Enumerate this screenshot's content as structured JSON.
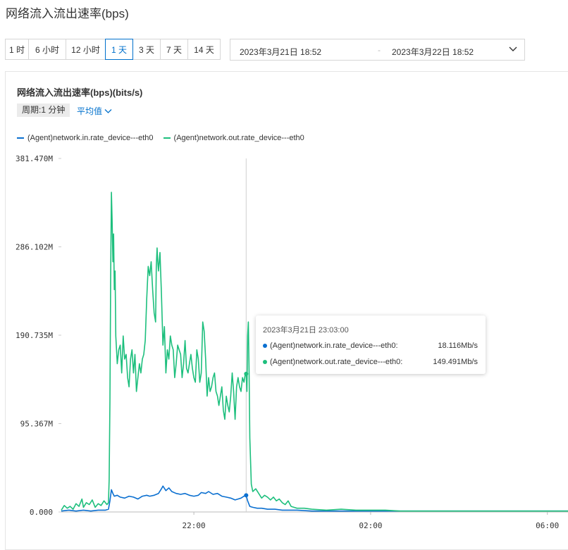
{
  "page": {
    "title": "网络流入流出速率(bps)"
  },
  "range_tabs": [
    {
      "label": "1 时",
      "active": false
    },
    {
      "label": "6 小时",
      "active": false
    },
    {
      "label": "12 小时",
      "active": false
    },
    {
      "label": "1 天",
      "active": true
    },
    {
      "label": "3 天",
      "active": false
    },
    {
      "label": "7 天",
      "active": false
    },
    {
      "label": "14 天",
      "active": false
    }
  ],
  "date_range": {
    "start": "2023年3月21日 18:52",
    "separator": "-",
    "end": "2023年3月22日 18:52"
  },
  "chart_header": {
    "title": "网络流入流出速率(bps)(bits/s)",
    "period": "周期:1 分钟",
    "aggregation": "平均值"
  },
  "colors": {
    "accent": "#0070cc",
    "in_series": "#0a6fd0",
    "out_series": "#1dbf7d"
  },
  "icons": {
    "date_dropdown": "chevron-down-icon",
    "agg_dropdown": "chevron-down-icon"
  },
  "tooltip": {
    "time": "2023年3月21日 23:03:00",
    "rows": [
      {
        "name": "(Agent)network.in.rate_device---eth0:",
        "value": "18.116Mb/s"
      },
      {
        "name": "(Agent)network.out.rate_device---eth0:",
        "value": "149.491Mb/s"
      }
    ]
  },
  "chart_data": {
    "type": "line",
    "title": "网络流入流出速率(bps)(bits/s)",
    "y_tick_labels": [
      "0.000",
      "95.367M",
      "190.735M",
      "286.102M",
      "381.470M"
    ],
    "y_unit": "Mbit/s",
    "ylim": [
      0,
      381.47
    ],
    "x_tick_labels": [
      "22:00",
      "02:00",
      "06:00"
    ],
    "x_tick_minutes": [
      180,
      420,
      660
    ],
    "x_range_minutes": [
      0,
      688
    ],
    "hover_minute": 251,
    "grid": false,
    "legend_position": "top-left",
    "series": [
      {
        "name": "(Agent)network.in.rate_device---eth0",
        "color": "#0a6fd0",
        "points": [
          [
            0,
            1
          ],
          [
            10,
            2
          ],
          [
            20,
            1
          ],
          [
            30,
            2
          ],
          [
            40,
            1
          ],
          [
            50,
            2
          ],
          [
            60,
            2
          ],
          [
            64,
            3
          ],
          [
            66,
            12
          ],
          [
            68,
            24
          ],
          [
            70,
            20
          ],
          [
            72,
            17
          ],
          [
            76,
            18
          ],
          [
            80,
            16
          ],
          [
            86,
            15
          ],
          [
            92,
            17
          ],
          [
            98,
            16
          ],
          [
            104,
            14
          ],
          [
            110,
            17
          ],
          [
            116,
            18
          ],
          [
            120,
            17
          ],
          [
            126,
            18
          ],
          [
            132,
            20
          ],
          [
            136,
            25
          ],
          [
            138,
            28
          ],
          [
            142,
            23
          ],
          [
            146,
            26
          ],
          [
            150,
            22
          ],
          [
            156,
            20
          ],
          [
            162,
            19
          ],
          [
            168,
            20
          ],
          [
            174,
            18
          ],
          [
            180,
            17
          ],
          [
            186,
            18
          ],
          [
            190,
            21
          ],
          [
            196,
            20
          ],
          [
            200,
            22
          ],
          [
            206,
            19
          ],
          [
            212,
            20
          ],
          [
            218,
            17
          ],
          [
            224,
            16
          ],
          [
            230,
            15
          ],
          [
            236,
            13
          ],
          [
            240,
            14
          ],
          [
            244,
            15
          ],
          [
            248,
            17
          ],
          [
            251,
            18
          ],
          [
            253,
            12
          ],
          [
            256,
            6
          ],
          [
            260,
            5
          ],
          [
            266,
            4
          ],
          [
            272,
            4
          ],
          [
            280,
            3
          ],
          [
            290,
            3
          ],
          [
            300,
            2
          ],
          [
            310,
            2
          ],
          [
            320,
            2
          ],
          [
            340,
            1
          ],
          [
            360,
            1
          ],
          [
            380,
            1
          ],
          [
            420,
            1
          ],
          [
            460,
            1
          ],
          [
            500,
            1
          ],
          [
            560,
            1
          ],
          [
            620,
            1
          ],
          [
            688,
            1
          ]
        ]
      },
      {
        "name": "(Agent)network.out.rate_device---eth0",
        "color": "#1dbf7d",
        "points": [
          [
            0,
            2
          ],
          [
            4,
            7
          ],
          [
            8,
            4
          ],
          [
            12,
            6
          ],
          [
            16,
            3
          ],
          [
            20,
            9
          ],
          [
            24,
            6
          ],
          [
            28,
            14
          ],
          [
            30,
            5
          ],
          [
            34,
            10
          ],
          [
            38,
            8
          ],
          [
            42,
            13
          ],
          [
            46,
            5
          ],
          [
            50,
            9
          ],
          [
            54,
            7
          ],
          [
            58,
            12
          ],
          [
            62,
            8
          ],
          [
            64,
            10
          ],
          [
            65,
            35
          ],
          [
            66,
            120
          ],
          [
            67,
            250
          ],
          [
            68,
            345
          ],
          [
            69,
            315
          ],
          [
            70,
            270
          ],
          [
            71,
            300
          ],
          [
            72,
            240
          ],
          [
            73,
            260
          ],
          [
            74,
            190
          ],
          [
            76,
            160
          ],
          [
            78,
            175
          ],
          [
            80,
            180
          ],
          [
            82,
            150
          ],
          [
            84,
            190
          ],
          [
            86,
            165
          ],
          [
            88,
            170
          ],
          [
            90,
            145
          ],
          [
            92,
            135
          ],
          [
            94,
            165
          ],
          [
            96,
            175
          ],
          [
            98,
            150
          ],
          [
            100,
            170
          ],
          [
            102,
            130
          ],
          [
            104,
            145
          ],
          [
            106,
            160
          ],
          [
            108,
            150
          ],
          [
            110,
            165
          ],
          [
            112,
            170
          ],
          [
            114,
            185
          ],
          [
            116,
            230
          ],
          [
            118,
            265
          ],
          [
            120,
            255
          ],
          [
            122,
            270
          ],
          [
            124,
            240
          ],
          [
            126,
            215
          ],
          [
            128,
            205
          ],
          [
            129,
            265
          ],
          [
            130,
            285
          ],
          [
            131,
            270
          ],
          [
            132,
            260
          ],
          [
            134,
            280
          ],
          [
            136,
            235
          ],
          [
            138,
            180
          ],
          [
            140,
            200
          ],
          [
            142,
            150
          ],
          [
            144,
            175
          ],
          [
            146,
            165
          ],
          [
            148,
            190
          ],
          [
            150,
            180
          ],
          [
            152,
            175
          ],
          [
            154,
            145
          ],
          [
            156,
            160
          ],
          [
            158,
            180
          ],
          [
            160,
            175
          ],
          [
            162,
            170
          ],
          [
            164,
            145
          ],
          [
            166,
            160
          ],
          [
            168,
            185
          ],
          [
            170,
            155
          ],
          [
            172,
            150
          ],
          [
            174,
            160
          ],
          [
            176,
            170
          ],
          [
            178,
            155
          ],
          [
            180,
            145
          ],
          [
            182,
            140
          ],
          [
            184,
            175
          ],
          [
            186,
            165
          ],
          [
            188,
            140
          ],
          [
            190,
            150
          ],
          [
            192,
            205
          ],
          [
            194,
            195
          ],
          [
            196,
            165
          ],
          [
            198,
            125
          ],
          [
            200,
            145
          ],
          [
            202,
            130
          ],
          [
            204,
            135
          ],
          [
            206,
            145
          ],
          [
            208,
            150
          ],
          [
            210,
            130
          ],
          [
            212,
            125
          ],
          [
            214,
            115
          ],
          [
            216,
            125
          ],
          [
            218,
            135
          ],
          [
            220,
            110
          ],
          [
            222,
            100
          ],
          [
            224,
            125
          ],
          [
            226,
            115
          ],
          [
            228,
            108
          ],
          [
            230,
            125
          ],
          [
            232,
            150
          ],
          [
            234,
            130
          ],
          [
            236,
            100
          ],
          [
            238,
            135
          ],
          [
            240,
            145
          ],
          [
            242,
            135
          ],
          [
            244,
            130
          ],
          [
            246,
            145
          ],
          [
            248,
            140
          ],
          [
            250,
            150
          ],
          [
            251,
            149
          ],
          [
            252,
            130
          ],
          [
            253,
            190
          ],
          [
            254,
            205
          ],
          [
            255,
            150
          ],
          [
            256,
            80
          ],
          [
            258,
            30
          ],
          [
            260,
            22
          ],
          [
            264,
            25
          ],
          [
            268,
            20
          ],
          [
            272,
            15
          ],
          [
            276,
            18
          ],
          [
            280,
            16
          ],
          [
            284,
            13
          ],
          [
            288,
            16
          ],
          [
            292,
            12
          ],
          [
            296,
            14
          ],
          [
            300,
            10
          ],
          [
            304,
            8
          ],
          [
            308,
            12
          ],
          [
            312,
            6
          ],
          [
            316,
            5
          ],
          [
            320,
            4
          ],
          [
            330,
            4
          ],
          [
            340,
            3
          ],
          [
            360,
            2
          ],
          [
            380,
            3
          ],
          [
            400,
            2
          ],
          [
            420,
            2
          ],
          [
            440,
            2
          ],
          [
            460,
            1
          ],
          [
            480,
            1
          ],
          [
            520,
            1
          ],
          [
            560,
            1
          ],
          [
            620,
            1
          ],
          [
            688,
            1
          ]
        ]
      }
    ]
  }
}
